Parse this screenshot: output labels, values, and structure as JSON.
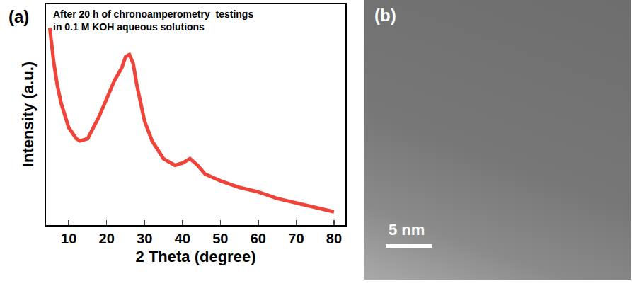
{
  "chart_data": {
    "type": "line",
    "panel_label": "(a)",
    "annotations": [
      {
        "lines": [
          "After 20 h of chronoamperometry  testings",
          "in 0.1 M KOH aqueous solutions"
        ]
      }
    ],
    "x_label": "2 Theta (degree)",
    "y_label": "Intensity (a.u.)",
    "x": [
      5,
      6,
      7,
      8,
      10,
      12,
      13,
      15,
      18,
      20,
      22,
      24,
      25,
      26,
      27,
      28,
      30,
      32,
      35,
      38,
      40,
      42,
      44,
      46,
      50,
      55,
      60,
      65,
      70,
      75,
      80
    ],
    "values": [
      89,
      74,
      63,
      55,
      44,
      39,
      38,
      39,
      49,
      57,
      65,
      71,
      76,
      77,
      73,
      63,
      47,
      38,
      30,
      27,
      28,
      30,
      27,
      23,
      20,
      17,
      15,
      12,
      10,
      8,
      6
    ],
    "color": "#f0433a",
    "xlim": [
      4,
      83
    ],
    "xticks": [
      10,
      20,
      30,
      40,
      50,
      60,
      70,
      80
    ],
    "ylim": [
      0,
      100
    ],
    "yticks": [],
    "tick_labels": "x",
    "grid": false
  },
  "image_panel": {
    "label": "(b)",
    "scale_bar": "5 nm"
  }
}
